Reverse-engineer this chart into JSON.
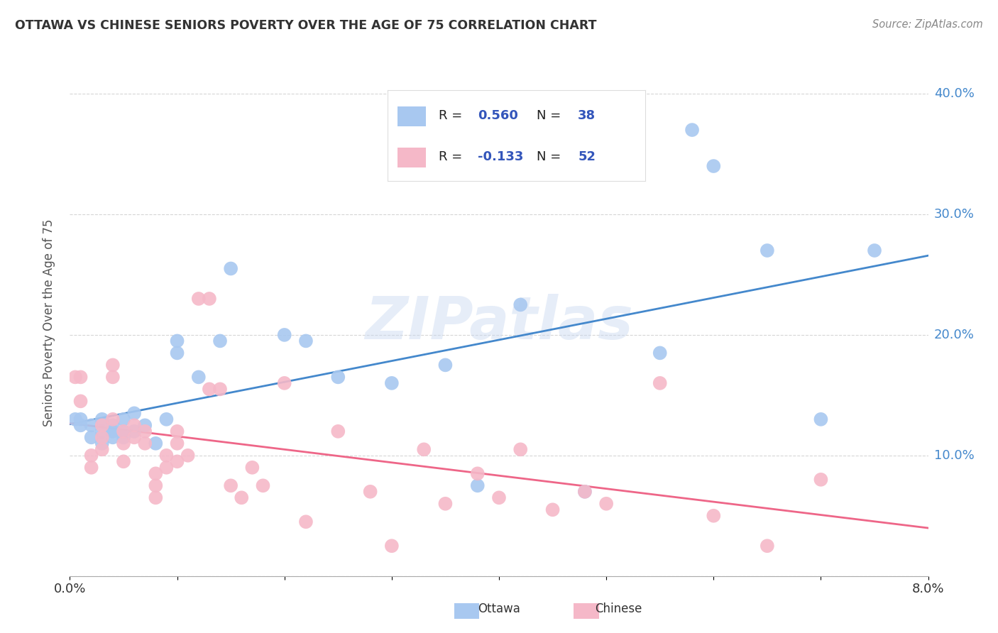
{
  "title": "OTTAWA VS CHINESE SENIORS POVERTY OVER THE AGE OF 75 CORRELATION CHART",
  "source": "Source: ZipAtlas.com",
  "ylabel": "Seniors Poverty Over the Age of 75",
  "x_min": 0.0,
  "x_max": 0.08,
  "y_min": 0.0,
  "y_max": 0.42,
  "ottawa_R": 0.56,
  "ottawa_N": 38,
  "chinese_R": -0.133,
  "chinese_N": 52,
  "ottawa_color": "#A8C8F0",
  "chinese_color": "#F5B8C8",
  "ottawa_line_color": "#4488CC",
  "chinese_line_color": "#EE6688",
  "legend_text_color": "#3355BB",
  "watermark": "ZIPatlas",
  "background_color": "#FFFFFF",
  "grid_color": "#CCCCCC",
  "ottawa_x": [
    0.0005,
    0.001,
    0.001,
    0.002,
    0.002,
    0.003,
    0.003,
    0.003,
    0.004,
    0.004,
    0.004,
    0.005,
    0.005,
    0.005,
    0.006,
    0.006,
    0.007,
    0.008,
    0.009,
    0.01,
    0.01,
    0.012,
    0.014,
    0.015,
    0.02,
    0.022,
    0.025,
    0.03,
    0.035,
    0.038,
    0.042,
    0.048,
    0.055,
    0.058,
    0.06,
    0.065,
    0.07,
    0.075
  ],
  "ottawa_y": [
    0.13,
    0.13,
    0.125,
    0.125,
    0.115,
    0.13,
    0.12,
    0.11,
    0.125,
    0.12,
    0.115,
    0.13,
    0.12,
    0.115,
    0.135,
    0.12,
    0.125,
    0.11,
    0.13,
    0.195,
    0.185,
    0.165,
    0.195,
    0.255,
    0.2,
    0.195,
    0.165,
    0.16,
    0.175,
    0.075,
    0.225,
    0.07,
    0.185,
    0.37,
    0.34,
    0.27,
    0.13,
    0.27
  ],
  "chinese_x": [
    0.0005,
    0.001,
    0.001,
    0.002,
    0.002,
    0.003,
    0.003,
    0.003,
    0.004,
    0.004,
    0.004,
    0.005,
    0.005,
    0.005,
    0.006,
    0.006,
    0.007,
    0.007,
    0.008,
    0.008,
    0.008,
    0.009,
    0.009,
    0.01,
    0.01,
    0.01,
    0.011,
    0.012,
    0.013,
    0.013,
    0.014,
    0.015,
    0.016,
    0.017,
    0.018,
    0.02,
    0.022,
    0.025,
    0.028,
    0.03,
    0.033,
    0.035,
    0.038,
    0.04,
    0.042,
    0.045,
    0.048,
    0.05,
    0.055,
    0.06,
    0.065,
    0.07
  ],
  "chinese_y": [
    0.165,
    0.165,
    0.145,
    0.1,
    0.09,
    0.125,
    0.115,
    0.105,
    0.175,
    0.165,
    0.13,
    0.12,
    0.11,
    0.095,
    0.125,
    0.115,
    0.12,
    0.11,
    0.085,
    0.075,
    0.065,
    0.1,
    0.09,
    0.12,
    0.11,
    0.095,
    0.1,
    0.23,
    0.23,
    0.155,
    0.155,
    0.075,
    0.065,
    0.09,
    0.075,
    0.16,
    0.045,
    0.12,
    0.07,
    0.025,
    0.105,
    0.06,
    0.085,
    0.065,
    0.105,
    0.055,
    0.07,
    0.06,
    0.16,
    0.05,
    0.025,
    0.08
  ]
}
